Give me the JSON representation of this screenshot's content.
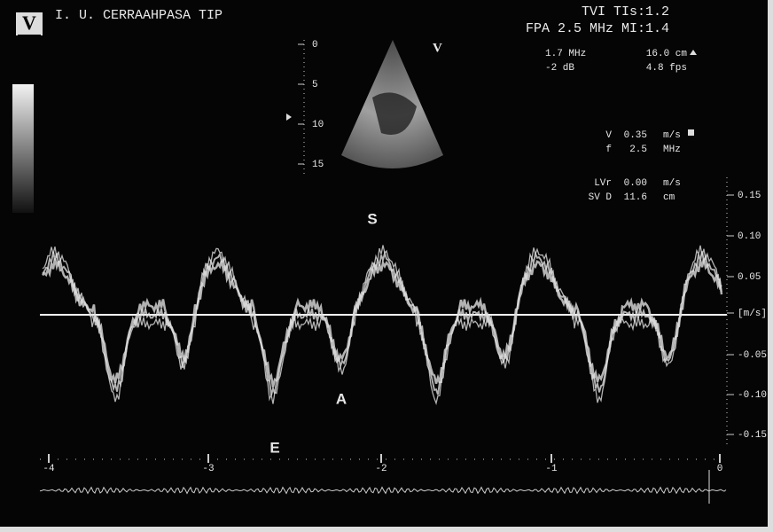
{
  "logo": "V",
  "header": {
    "title": "I. U. CERRAAHPASA TIP",
    "mode": "TVI TIs:1.2",
    "probe": "FPA 2.5 MHz MI:1.4"
  },
  "imaging": {
    "frequency": "1.7 MHz",
    "gain": "-2 dB",
    "depth": "16.0 cm",
    "frame_rate": "4.8 fps"
  },
  "depth_scale": [
    "0",
    "5",
    "10",
    "15"
  ],
  "view_label": "V",
  "doppler": [
    [
      "V",
      "0.35",
      "m/s"
    ],
    [
      "f",
      "2.5",
      "MHz"
    ],
    [
      "LVr",
      "0.00",
      "m/s"
    ],
    [
      "SV D",
      "11.6",
      "cm"
    ]
  ],
  "velocity_scale": [
    "0.15",
    "0.10",
    "0.05",
    "[m/s]",
    "-0.05",
    "-0.10",
    "-0.15"
  ],
  "time_scale": [
    "-4",
    "-3",
    "-2",
    "-1",
    "0"
  ],
  "annotations": {
    "s": "S",
    "a": "A",
    "e": "E"
  }
}
